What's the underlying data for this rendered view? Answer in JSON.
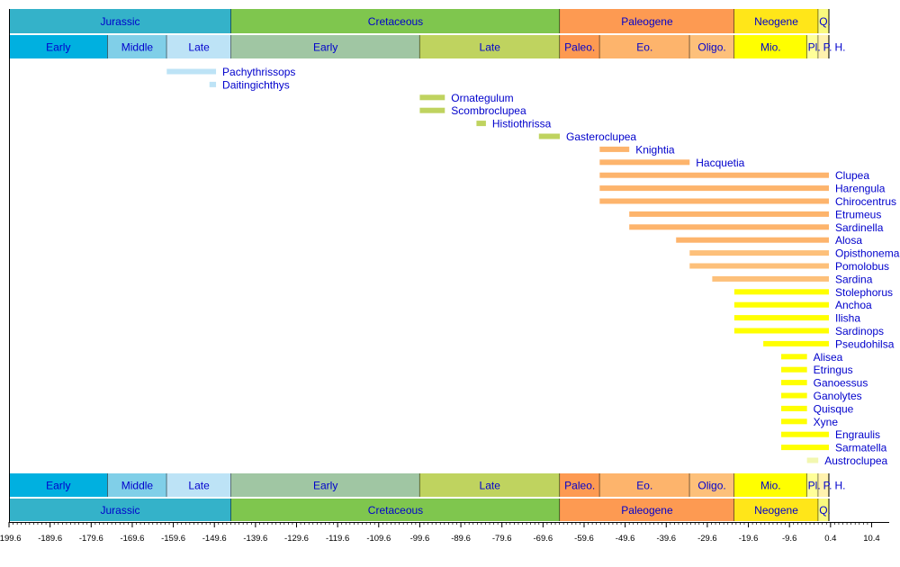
{
  "chart_data": {
    "type": "timeline",
    "xlim": [
      -199.6,
      10.4
    ],
    "x_ticks": [
      "-199.6",
      "-189.6",
      "-179.6",
      "-169.6",
      "-159.6",
      "-149.6",
      "-139.6",
      "-129.6",
      "-119.6",
      "-109.6",
      "-99.6",
      "-89.6",
      "-79.6",
      "-69.6",
      "-59.6",
      "-49.6",
      "-39.6",
      "-29.6",
      "-19.6",
      "-9.6",
      "0.4",
      "10.4"
    ],
    "x_tick_values": [
      -199.6,
      -189.6,
      -179.6,
      -169.6,
      -159.6,
      -149.6,
      -139.6,
      -129.6,
      -119.6,
      -109.6,
      -99.6,
      -89.6,
      -79.6,
      -69.6,
      -59.6,
      -49.6,
      -39.6,
      -29.6,
      -19.6,
      -9.6,
      0.4,
      10.4
    ],
    "minor_tick_step": 1,
    "periods": [
      {
        "label": "Jurassic",
        "start": -199.6,
        "end": -145.5,
        "color": "#34b2c9"
      },
      {
        "label": "Cretaceous",
        "start": -145.5,
        "end": -65.5,
        "color": "#7fc64e"
      },
      {
        "label": "Paleogene",
        "start": -65.5,
        "end": -23.03,
        "color": "#fd9a52"
      },
      {
        "label": "Neogene",
        "start": -23.03,
        "end": -2.588,
        "color": "#ffe619"
      },
      {
        "label": "Q.",
        "start": -2.588,
        "end": 0,
        "color": "#f9f97f"
      }
    ],
    "epochs": [
      {
        "label": "Early",
        "start": -199.6,
        "end": -175.6,
        "color": "#00b0e0"
      },
      {
        "label": "Middle",
        "start": -175.6,
        "end": -161.2,
        "color": "#80cfe8"
      },
      {
        "label": "Late",
        "start": -161.2,
        "end": -145.5,
        "color": "#bde3f6"
      },
      {
        "label": "Early",
        "start": -145.5,
        "end": -99.6,
        "color": "#a0c6a3"
      },
      {
        "label": "Late",
        "start": -99.6,
        "end": -65.5,
        "color": "#bfd35f"
      },
      {
        "label": "Paleo.",
        "start": -65.5,
        "end": -55.8,
        "color": "#fd9a52"
      },
      {
        "label": "Eo.",
        "start": -55.8,
        "end": -33.9,
        "color": "#fdb46c"
      },
      {
        "label": "Oligo.",
        "start": -33.9,
        "end": -23.03,
        "color": "#fdc07a"
      },
      {
        "label": "Mio.",
        "start": -23.03,
        "end": -5.332,
        "color": "#ffff00"
      },
      {
        "label": "Pl.",
        "start": -5.332,
        "end": -2.588,
        "color": "#ffff99"
      },
      {
        "label": "P.",
        "start": -2.588,
        "end": -0.0117,
        "color": "#fff2ae"
      },
      {
        "label": "H.",
        "start": -0.0117,
        "end": 0,
        "color": "#fef2e0"
      }
    ],
    "taxa": [
      {
        "name": "Pachythrissops",
        "start": -161.2,
        "end": -149.2,
        "color": "#bde3f6"
      },
      {
        "name": "Daitingichthys",
        "start": -150.8,
        "end": -149.2,
        "color": "#bde3f6"
      },
      {
        "name": "Ornategulum",
        "start": -99.6,
        "end": -93.5,
        "color": "#bfd35f"
      },
      {
        "name": "Scombroclupea",
        "start": -99.6,
        "end": -93.5,
        "color": "#bfd35f"
      },
      {
        "name": "Histiothrissa",
        "start": -85.8,
        "end": -83.5,
        "color": "#bfd35f"
      },
      {
        "name": "Gasteroclupea",
        "start": -70.6,
        "end": -65.5,
        "color": "#bfd35f"
      },
      {
        "name": "Knightia",
        "start": -55.8,
        "end": -48.6,
        "color": "#fdb46c"
      },
      {
        "name": "Hacquetia",
        "start": -55.8,
        "end": -33.9,
        "color": "#fdb46c"
      },
      {
        "name": "Clupea",
        "start": -55.8,
        "end": 0,
        "color": "#fdb46c"
      },
      {
        "name": "Harengula",
        "start": -55.8,
        "end": 0,
        "color": "#fdb46c"
      },
      {
        "name": "Chirocentrus",
        "start": -55.8,
        "end": 0,
        "color": "#fdb46c"
      },
      {
        "name": "Etrumeus",
        "start": -48.6,
        "end": 0,
        "color": "#fdb46c"
      },
      {
        "name": "Sardinella",
        "start": -48.6,
        "end": 0,
        "color": "#fdb46c"
      },
      {
        "name": "Alosa",
        "start": -37.2,
        "end": 0,
        "color": "#fdb46c"
      },
      {
        "name": "Opisthonema",
        "start": -33.9,
        "end": 0,
        "color": "#fdc07a"
      },
      {
        "name": "Pomolobus",
        "start": -33.9,
        "end": 0,
        "color": "#fdc07a"
      },
      {
        "name": "Sardina",
        "start": -28.4,
        "end": 0,
        "color": "#fdc07a"
      },
      {
        "name": "Stolephorus",
        "start": -23.03,
        "end": 0,
        "color": "#ffff00"
      },
      {
        "name": "Anchoa",
        "start": -23.03,
        "end": 0,
        "color": "#ffff00"
      },
      {
        "name": "Ilisha",
        "start": -23.03,
        "end": 0,
        "color": "#ffff00"
      },
      {
        "name": "Sardinops",
        "start": -23.03,
        "end": 0,
        "color": "#ffff00"
      },
      {
        "name": "Pseudohilsa",
        "start": -15.97,
        "end": 0,
        "color": "#ffff00"
      },
      {
        "name": "Alisea",
        "start": -11.608,
        "end": -5.332,
        "color": "#ffff00"
      },
      {
        "name": "Etringus",
        "start": -11.608,
        "end": -5.332,
        "color": "#ffff00"
      },
      {
        "name": "Ganoessus",
        "start": -11.608,
        "end": -5.332,
        "color": "#ffff00"
      },
      {
        "name": "Ganolytes",
        "start": -11.608,
        "end": -5.332,
        "color": "#ffff00"
      },
      {
        "name": "Quisque",
        "start": -11.608,
        "end": -5.332,
        "color": "#ffff00"
      },
      {
        "name": "Xyne",
        "start": -11.608,
        "end": -5.332,
        "color": "#ffff00"
      },
      {
        "name": "Engraulis",
        "start": -11.608,
        "end": 0,
        "color": "#ffff00"
      },
      {
        "name": "Sarmatella",
        "start": -11.608,
        "end": 0,
        "color": "#ffff00"
      },
      {
        "name": "Austroclupea",
        "start": -5.332,
        "end": -2.588,
        "color": "#f2f7b0"
      }
    ],
    "label_color": "#0000cc"
  }
}
